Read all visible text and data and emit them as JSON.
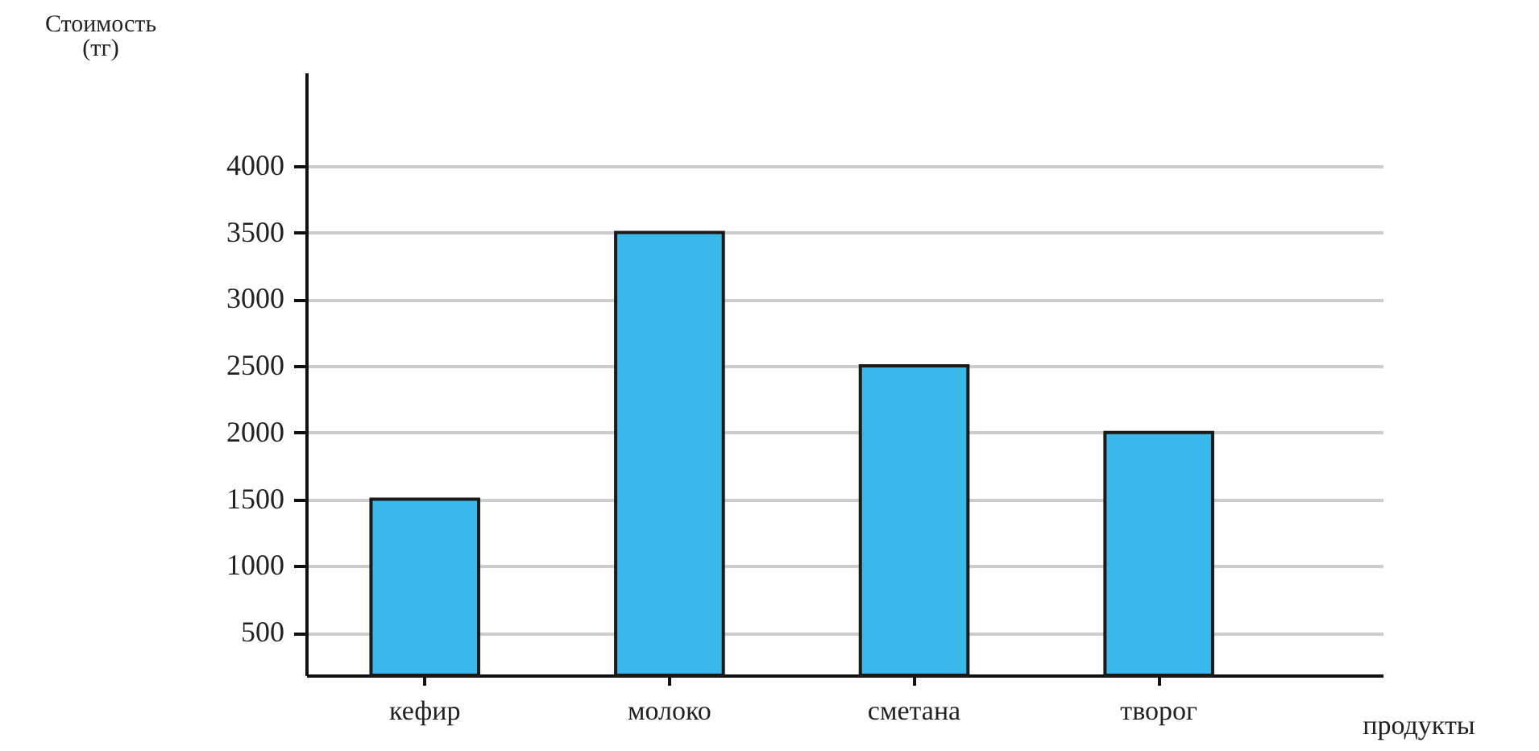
{
  "chart_data": {
    "type": "bar",
    "xlabel": "продукты",
    "ylabel": "Стоимость (тг)",
    "categories": [
      "кефир",
      "молоко",
      "сметана",
      "творог"
    ],
    "values": [
      1500,
      3500,
      2500,
      2000
    ],
    "color": "#3bb8ea",
    "ylim": [
      180,
      4700
    ],
    "yticks": [
      500,
      1000,
      1500,
      2000,
      2500,
      3000,
      3500,
      4000
    ],
    "grid": "y"
  }
}
